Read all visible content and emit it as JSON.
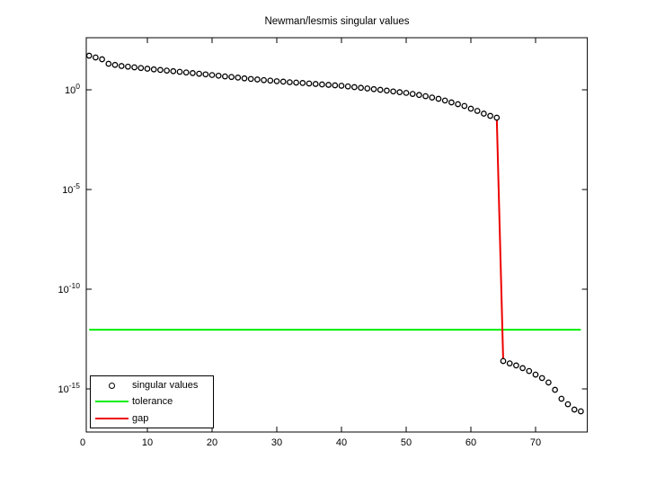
{
  "figure": {
    "background": "#ffffff"
  },
  "legend": {
    "items": [
      {
        "label": "singular values",
        "marker": "open-circle",
        "color": "#000000"
      },
      {
        "label": "tolerance",
        "marker": "line",
        "color": "#00ee00"
      },
      {
        "label": "gap",
        "marker": "line",
        "color": "#ee0000"
      }
    ]
  },
  "chart_data": {
    "type": "scatter",
    "title": "Newman/lesmis singular values",
    "xlabel": "",
    "ylabel": "",
    "y_scale": "log",
    "xlim": [
      0,
      78
    ],
    "ylim": [
      1e-17,
      400
    ],
    "x_ticks": [
      0,
      10,
      20,
      30,
      40,
      50,
      60,
      70
    ],
    "y_tick_exponents": [
      0,
      -5,
      -10,
      -15
    ],
    "grid": false,
    "legend_position": "lower-left",
    "series": [
      {
        "name": "singular values",
        "style": "markers",
        "marker": "open-circle",
        "color": "#000000",
        "x_start": 1,
        "x_step": 1,
        "count": 77,
        "values": [
          51.5,
          41.9,
          34,
          20.2,
          17.8,
          15.6,
          14.5,
          13.4,
          12.4,
          11.4,
          10.6,
          9.9,
          9.2,
          8.6,
          8,
          7.4,
          6.9,
          6.4,
          5.95,
          5.5,
          5.1,
          4.7,
          4.4,
          4.1,
          3.75,
          3.5,
          3.3,
          3.06,
          2.9,
          2.7,
          2.57,
          2.4,
          2.3,
          2.2,
          2.07,
          1.96,
          1.86,
          1.77,
          1.68,
          1.6,
          1.48,
          1.36,
          1.26,
          1.17,
          1.08,
          1,
          0.91,
          0.83,
          0.76,
          0.7,
          0.62,
          0.55,
          0.48,
          0.41,
          0.354,
          0.29,
          0.234,
          0.19,
          0.155,
          0.113,
          0.0875,
          0.064,
          0.0494,
          0.04,
          2.5e-14,
          1.9e-14,
          1.5e-14,
          1.1e-14,
          7.9e-15,
          5.2e-15,
          3.5e-15,
          2.1e-15,
          9e-16,
          3.2e-16,
          1.7e-16,
          9.2e-17,
          7.5e-17
        ]
      },
      {
        "name": "tolerance",
        "style": "hline",
        "color": "#00ee00",
        "value": 9.3e-13,
        "x_span": [
          1,
          77
        ]
      },
      {
        "name": "gap",
        "style": "segment",
        "color": "#ee0000",
        "from": {
          "x": 64,
          "y": 0.04
        },
        "to": {
          "x": 65,
          "y": 2.5e-14
        }
      }
    ]
  }
}
